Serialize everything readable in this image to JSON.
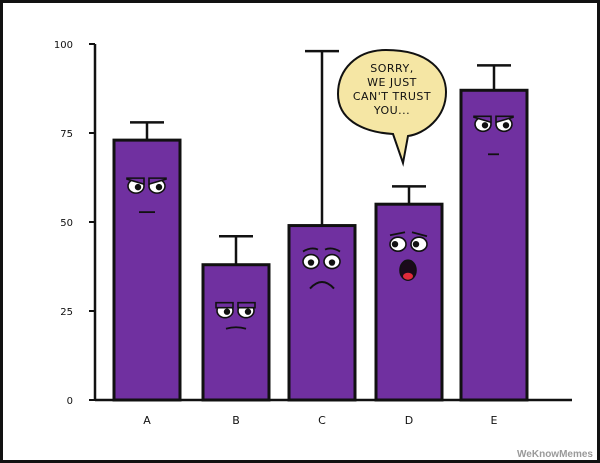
{
  "chart_data": {
    "type": "bar",
    "categories": [
      "A",
      "B",
      "C",
      "D",
      "E"
    ],
    "values": [
      73,
      38,
      49,
      55,
      87
    ],
    "error_upper": [
      78,
      46,
      98,
      60,
      94
    ],
    "ylim": [
      0,
      100
    ],
    "yticks": [
      0,
      25,
      50,
      75,
      100
    ],
    "title": "",
    "xlabel": "",
    "ylabel": "",
    "grid": false,
    "bar_color": "#7030a0",
    "outline_color": "#111111"
  },
  "bubble": {
    "lines": [
      "SORRY,",
      "WE JUST",
      "CAN'T TRUST",
      "YOU..."
    ],
    "fill": "#f5e6a4"
  },
  "watermark": "WeKnowMemes"
}
